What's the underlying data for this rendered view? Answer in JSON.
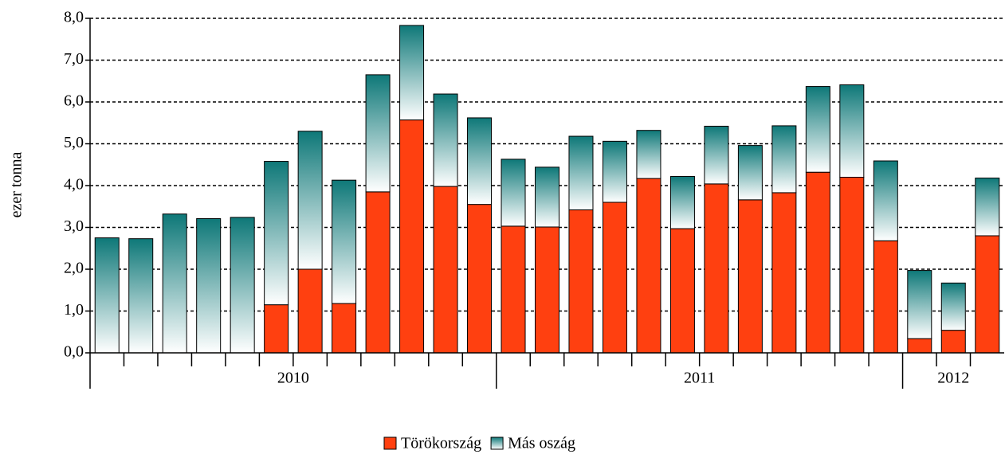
{
  "chart_data": {
    "type": "stacked_bar",
    "y_label": "ezer tonna",
    "categories": [
      null,
      null,
      null,
      null,
      null,
      null,
      null,
      null,
      null,
      null,
      null,
      null,
      null,
      null,
      null,
      null,
      null,
      null,
      null,
      null,
      null,
      null,
      null,
      null,
      null,
      null,
      null
    ],
    "year_labels": [
      "2010",
      "2011",
      "2012"
    ],
    "year_spans": [
      12,
      12,
      3
    ],
    "series": [
      {
        "name": "Törökország",
        "color": "#ff4010",
        "values": [
          0,
          0,
          0,
          0,
          0,
          1.15,
          2.0,
          1.18,
          3.85,
          5.57,
          3.98,
          3.55,
          3.03,
          3.01,
          3.42,
          3.6,
          4.17,
          2.97,
          4.04,
          3.66,
          3.83,
          4.32,
          4.2,
          2.68,
          0.34,
          0.54,
          2.8
        ]
      },
      {
        "name": "Más oszág",
        "color": "#0e7878",
        "gradient": true,
        "values": [
          2.75,
          2.73,
          3.32,
          3.21,
          3.24,
          3.43,
          3.3,
          2.95,
          2.8,
          2.26,
          2.21,
          2.07,
          1.6,
          1.43,
          1.76,
          1.46,
          1.15,
          1.25,
          1.38,
          1.3,
          1.6,
          2.05,
          2.21,
          1.91,
          1.63,
          1.13,
          1.38
        ]
      }
    ],
    "ylim": [
      0,
      8
    ],
    "yticks": [
      {
        "value": 0,
        "label": "0,0"
      },
      {
        "value": 1,
        "label": "1,0"
      },
      {
        "value": 2,
        "label": "2,0"
      },
      {
        "value": 3,
        "label": "3,0"
      },
      {
        "value": 4,
        "label": "4,0"
      },
      {
        "value": 5,
        "label": "5,0"
      },
      {
        "value": 6,
        "label": "6,0"
      },
      {
        "value": 7,
        "label": "7,0"
      },
      {
        "value": 8,
        "label": "8,0"
      }
    ],
    "grid": true,
    "legend": "bottom"
  }
}
